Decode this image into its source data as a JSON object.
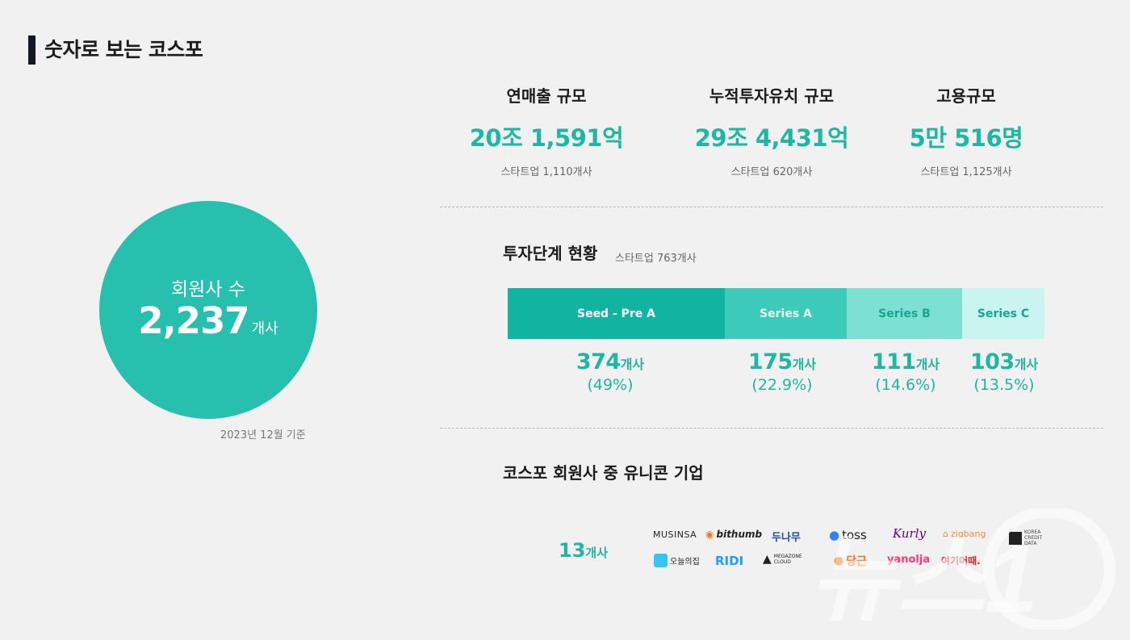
{
  "page": {
    "title": "숫자로 보는 코스포"
  },
  "members": {
    "label": "회원사 수",
    "value": "2,237",
    "unit": "개사",
    "as_of": "2023년 12월 기준"
  },
  "stats": [
    {
      "label": "연매출 규모",
      "value": "20조 1,591억",
      "sub": "스타트업 1,110개사"
    },
    {
      "label": "누적투자유치 규모",
      "value": "29조 4,431억",
      "sub": "스타트업 620개사"
    },
    {
      "label": "고용규모",
      "value": "5만 516명",
      "sub": "스타트업 1,125개사"
    }
  ],
  "investment": {
    "title": "투자단계 현황",
    "sub": "스타트업 763개사",
    "stages": [
      {
        "name": "Seed - Pre A",
        "count": "374",
        "unit": "개사",
        "pct": "(49%)",
        "share": 49,
        "color": "#11b3a1",
        "text_color": "#ffffff"
      },
      {
        "name": "Series A",
        "count": "175",
        "unit": "개사",
        "pct": "(22.9%)",
        "share": 22.9,
        "color": "#3ccbba",
        "text_color": "#e8fbf8"
      },
      {
        "name": "Series B",
        "count": "111",
        "unit": "개사",
        "pct": "(14.6%)",
        "share": 14.6,
        "color": "#7ce0d3",
        "text_color": "#17a493"
      },
      {
        "name": "Series C",
        "count": "103",
        "unit": "개사",
        "pct": "(13.5%)",
        "share": 13.5,
        "color": "#c8f5ef",
        "text_color": "#17a493"
      }
    ]
  },
  "unicorn": {
    "title": "코스포 회원사 중 유니콘 기업",
    "count": "13",
    "unit": "개사",
    "logos": [
      "MUSINSA",
      "bithumb",
      "두나무",
      "toss",
      "Kurly",
      "zigbang",
      "KOREA CREDIT DATA",
      "오늘의집",
      "RIDI",
      "MEGAZONE CLOUD",
      "당근",
      "yanolja",
      "여기어때."
    ]
  },
  "watermark": {
    "text": "뉴스1"
  },
  "colors": {
    "accent": "#1fb6a4",
    "circle": "#27bfae",
    "background": "#f1f1f1"
  }
}
